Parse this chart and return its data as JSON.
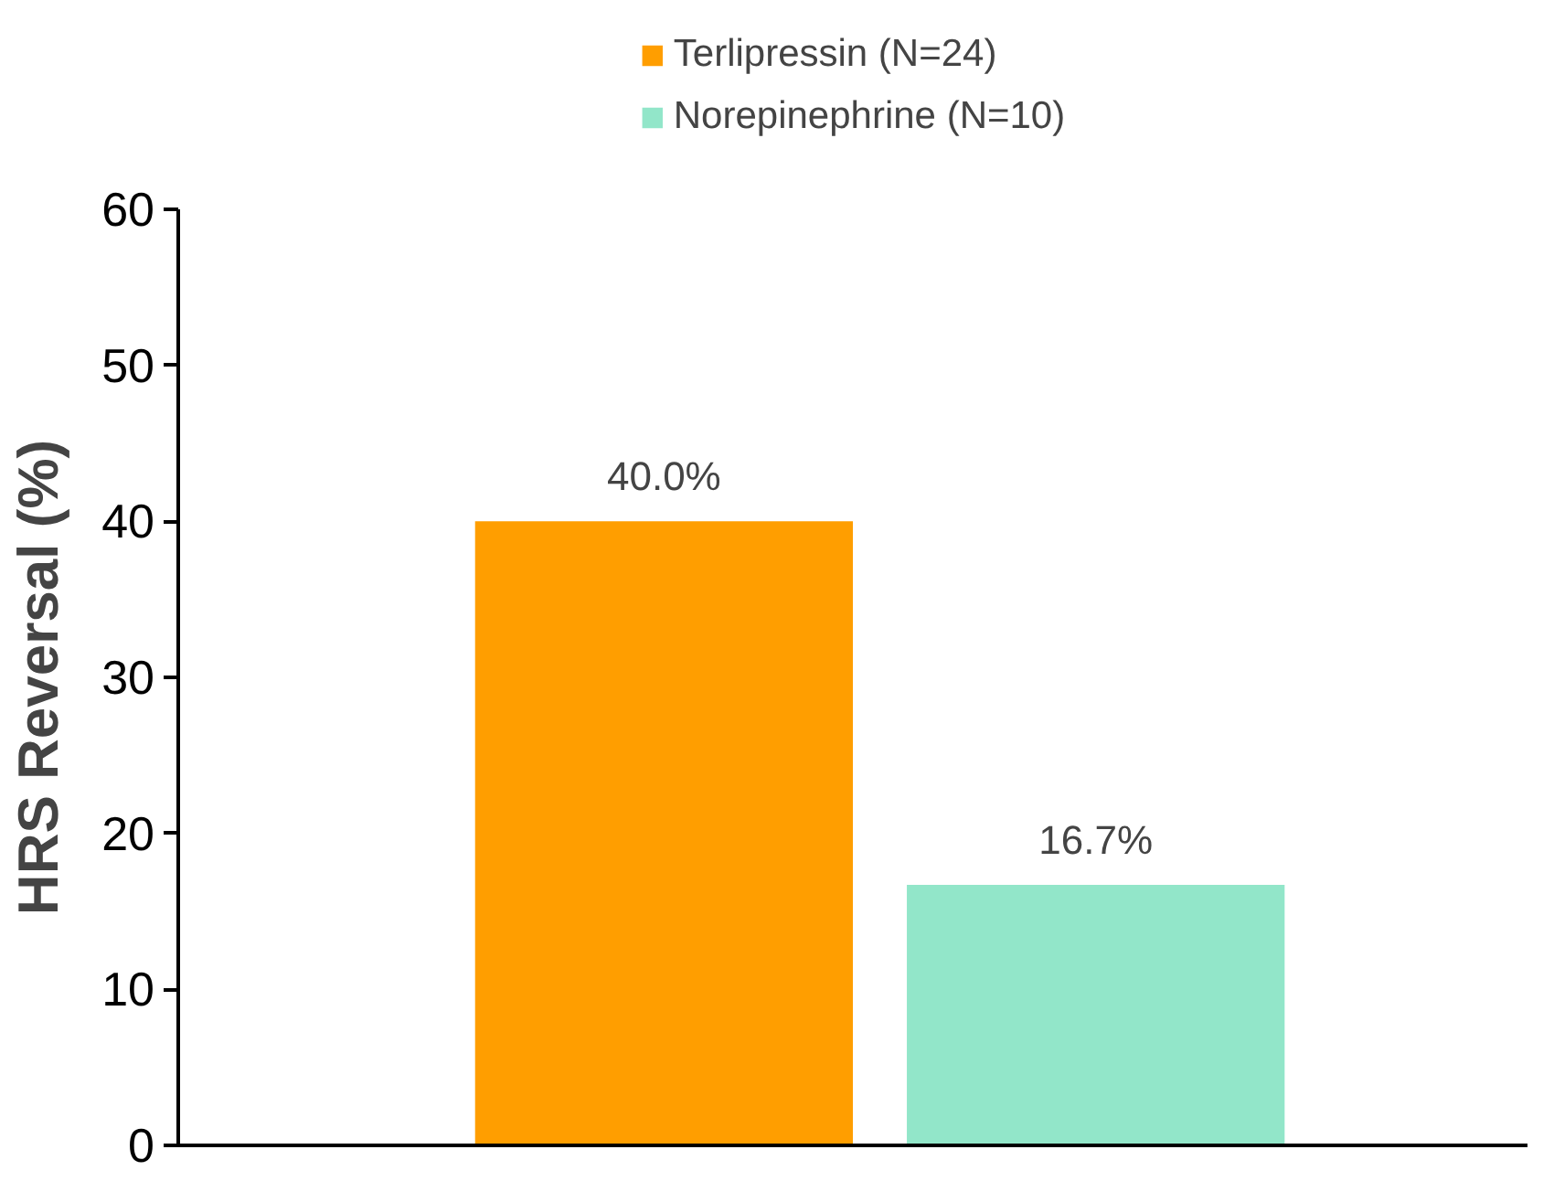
{
  "chart_data": {
    "type": "bar",
    "ylabel": "HRS Reversal (%)",
    "categories": [
      null
    ],
    "series": [
      {
        "name": "Terlipressin (N=24)",
        "color": "#ff9e00",
        "values": [
          40.0
        ],
        "value_labels": [
          "40.0%"
        ]
      },
      {
        "name": "Norepinephrine (N=10)",
        "color": "#92e6c9",
        "values": [
          16.7
        ],
        "value_labels": [
          "16.7%"
        ]
      }
    ],
    "ylim": [
      0,
      60
    ],
    "yticks": [
      0,
      10,
      20,
      30,
      40,
      50,
      60
    ],
    "grid": false,
    "legend": "top"
  }
}
